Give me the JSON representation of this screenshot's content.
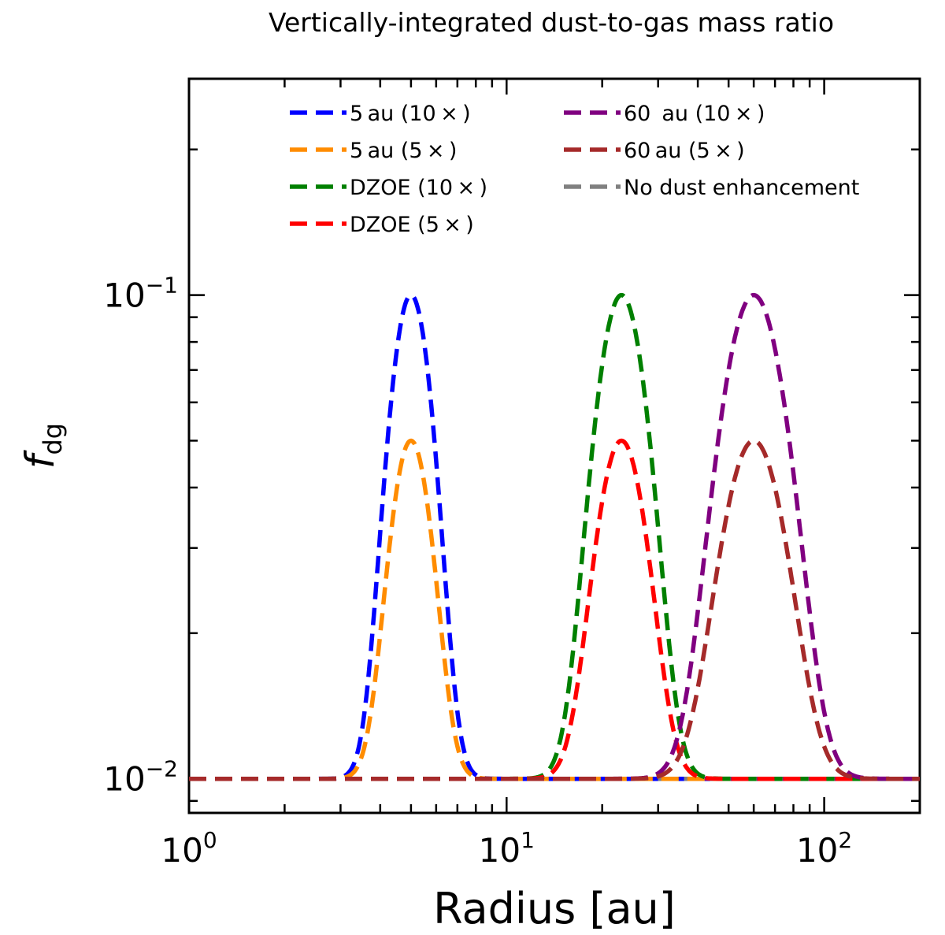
{
  "chart_data": {
    "type": "line",
    "title": "Vertically-integrated dust-to-gas mass ratio",
    "xlabel": "Radius [au]",
    "ylabel": "f",
    "ylabel_sub": "dg",
    "xscale": "log",
    "yscale": "log",
    "xlim": [
      1,
      200
    ],
    "ylim": [
      0.0085,
      0.28
    ],
    "x_ticks": [
      {
        "value": 1,
        "base": "10",
        "exp": "0"
      },
      {
        "value": 10,
        "base": "10",
        "exp": "1"
      },
      {
        "value": 100,
        "base": "10",
        "exp": "2"
      }
    ],
    "y_ticks": [
      {
        "value": 0.01,
        "base": "10",
        "exp": "−2"
      },
      {
        "value": 0.1,
        "base": "10",
        "exp": "−1"
      }
    ],
    "baseline": 0.01,
    "series": [
      {
        "name": "5 au (10 × )",
        "color": "#0000ff",
        "center": 5.0,
        "peak": 0.1,
        "width": 0.058
      },
      {
        "name": "5 au (5 × )",
        "color": "#ff8c00",
        "center": 5.0,
        "peak": 0.05,
        "width": 0.058
      },
      {
        "name": "DZOE (10 × )",
        "color": "#008000",
        "center": 23.0,
        "peak": 0.1,
        "width": 0.07
      },
      {
        "name": "DZOE (5 × )",
        "color": "#ff0000",
        "center": 23.0,
        "peak": 0.05,
        "width": 0.07
      },
      {
        "name": "60  au (10 × )",
        "color": "#800080",
        "center": 60.0,
        "peak": 0.1,
        "width": 0.088
      },
      {
        "name": "60 au (5 × )",
        "color": "#a52a2a",
        "center": 60.0,
        "peak": 0.05,
        "width": 0.088
      },
      {
        "name": "No dust enhancement",
        "color": "#808080",
        "center": null,
        "peak": 0.01,
        "width": null
      }
    ]
  }
}
